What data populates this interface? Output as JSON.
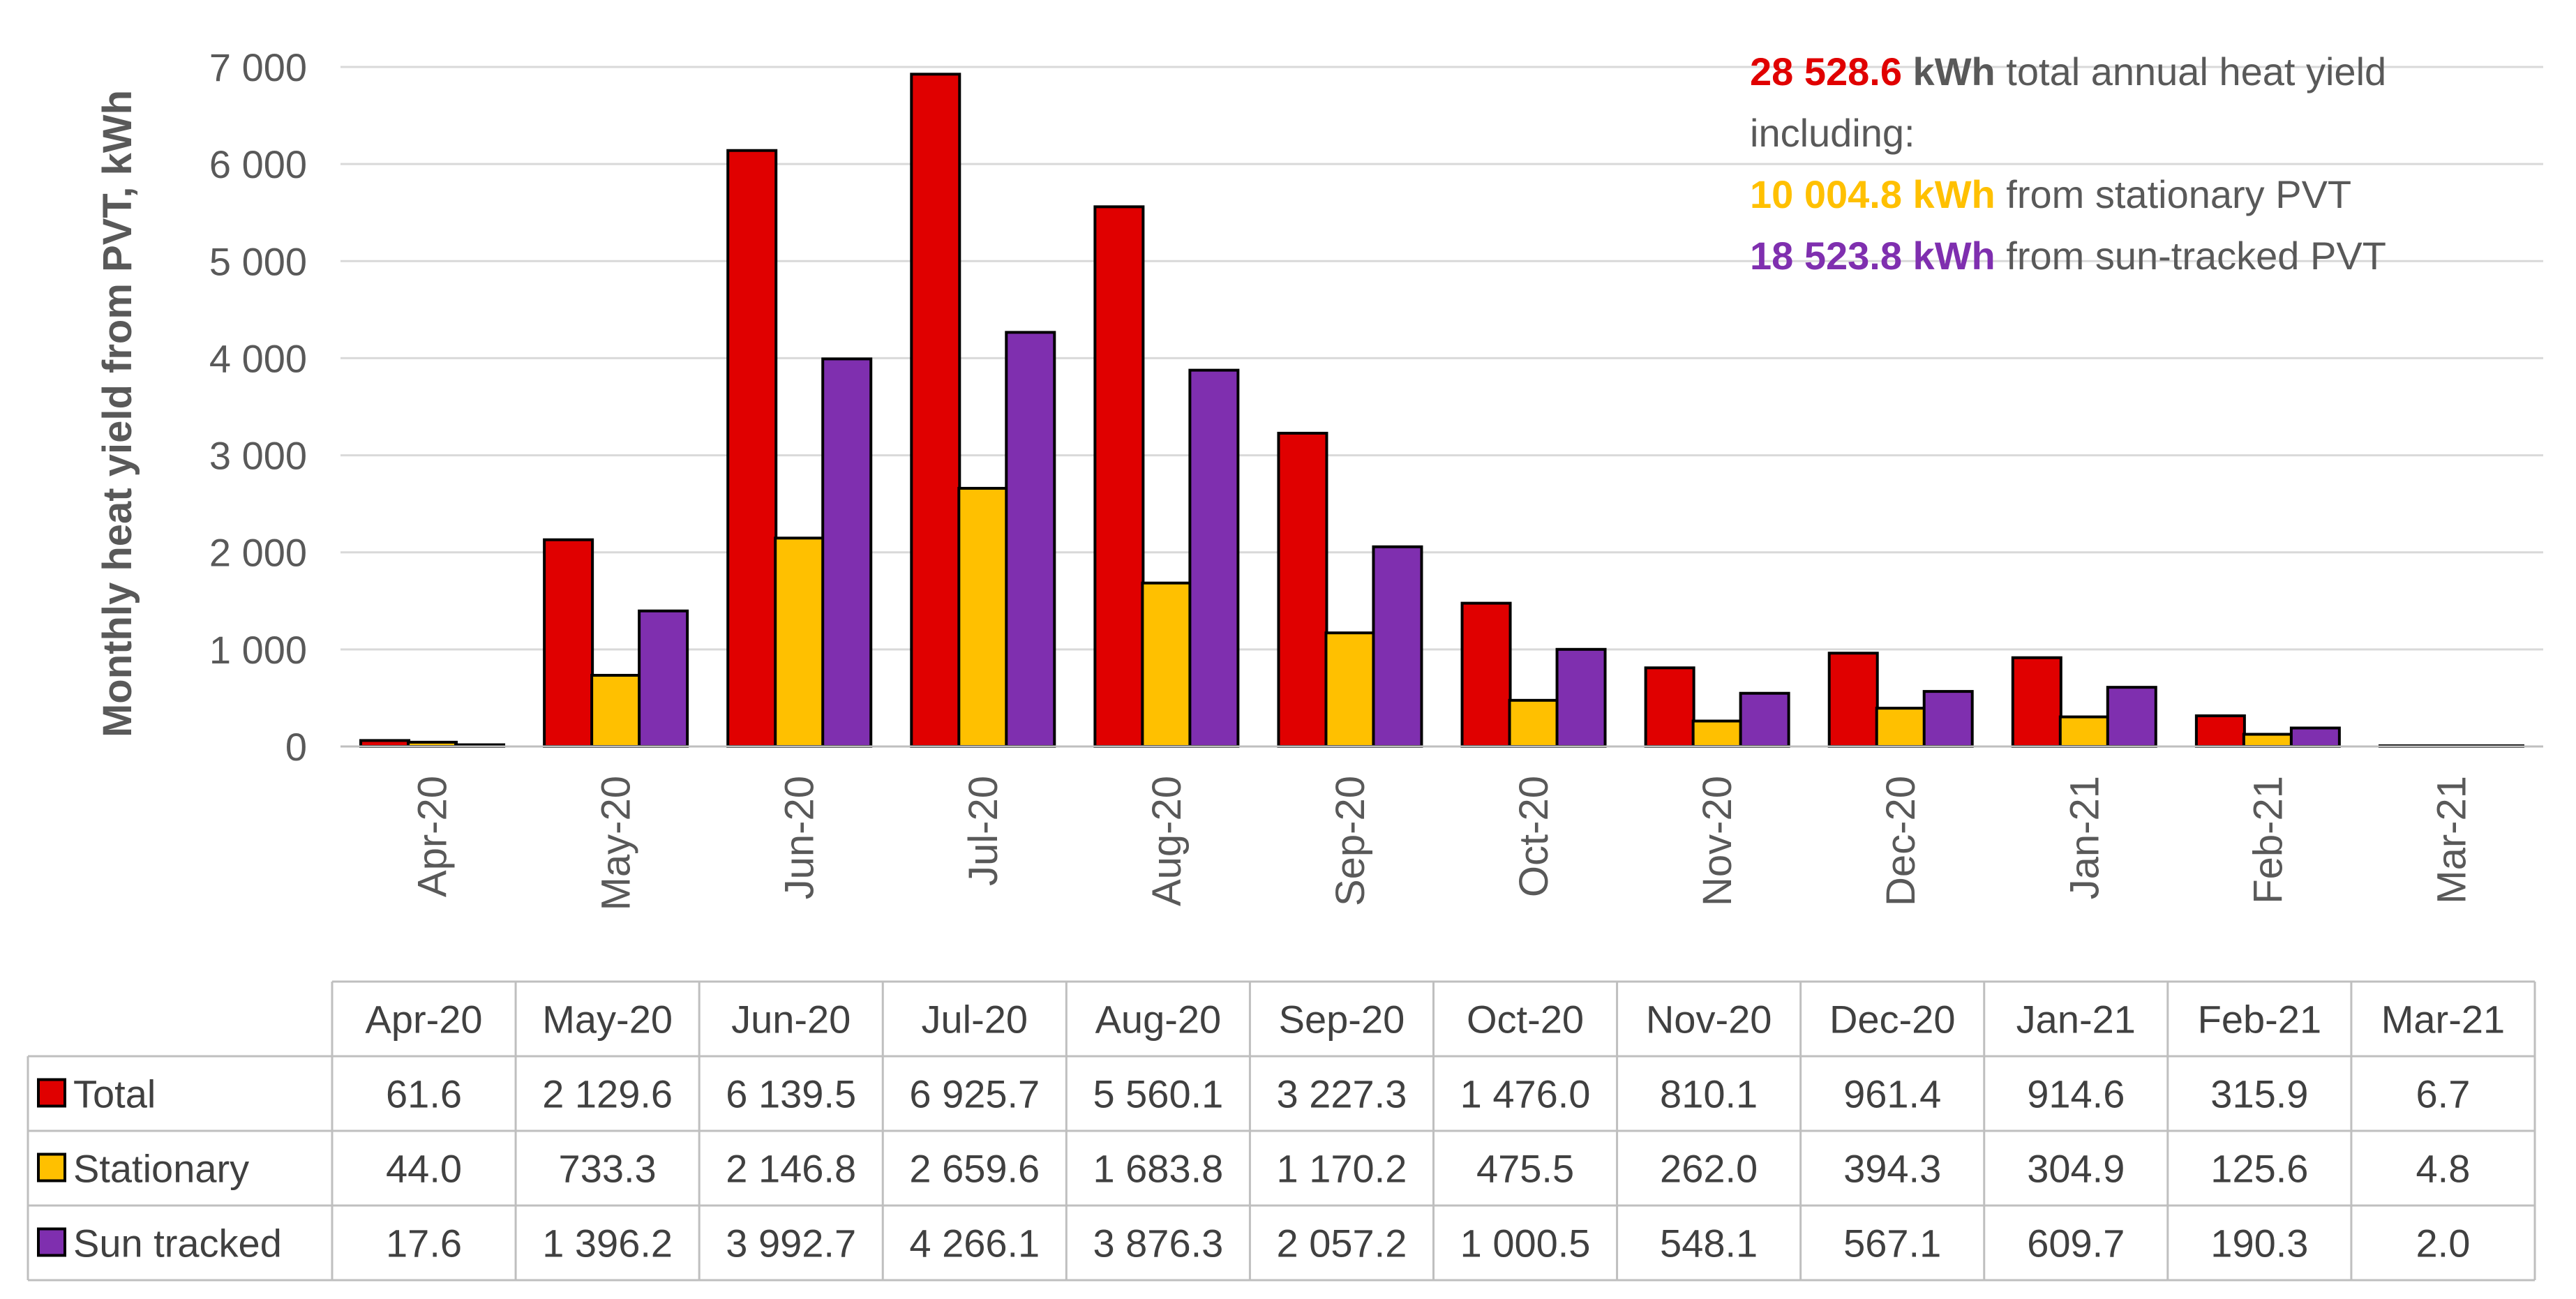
{
  "chart_data": {
    "type": "bar",
    "ylabel": "Monthly heat yield from PVT, kWh",
    "ylim": [
      0,
      7000
    ],
    "yticks": [
      0,
      1000,
      2000,
      3000,
      4000,
      5000,
      6000,
      7000
    ],
    "ytick_labels": [
      "0",
      "1 000",
      "2 000",
      "3 000",
      "4 000",
      "5 000",
      "6 000",
      "7 000"
    ],
    "gridlines": true,
    "legend_placement": "bottom (data table)",
    "categories": [
      "Apr-20",
      "May-20",
      "Jun-20",
      "Jul-20",
      "Aug-20",
      "Sep-20",
      "Oct-20",
      "Nov-20",
      "Dec-20",
      "Jan-21",
      "Feb-21",
      "Mar-21"
    ],
    "series": [
      {
        "name": "Total",
        "color": "#E00000",
        "values": [
          61.6,
          2129.6,
          6139.5,
          6925.7,
          5560.1,
          3227.3,
          1476.0,
          810.1,
          961.4,
          914.6,
          315.9,
          6.7
        ],
        "labels": [
          "61.6",
          "2 129.6",
          "6 139.5",
          "6 925.7",
          "5 560.1",
          "3 227.3",
          "1 476.0",
          "810.1",
          "961.4",
          "914.6",
          "315.9",
          "6.7"
        ]
      },
      {
        "name": "Stationary",
        "color": "#FFC000",
        "values": [
          44.0,
          733.3,
          2146.8,
          2659.6,
          1683.8,
          1170.2,
          475.5,
          262.0,
          394.3,
          304.9,
          125.6,
          4.8
        ],
        "labels": [
          "44.0",
          "733.3",
          "2 146.8",
          "2 659.6",
          "1 683.8",
          "1 170.2",
          "475.5",
          "262.0",
          "394.3",
          "304.9",
          "125.6",
          "4.8"
        ]
      },
      {
        "name": "Sun tracked",
        "color": "#7F2FAF",
        "values": [
          17.6,
          1396.2,
          3992.7,
          4266.1,
          3876.3,
          2057.2,
          1000.5,
          548.1,
          567.1,
          609.7,
          190.3,
          2.0
        ],
        "labels": [
          "17.6",
          "1 396.2",
          "3 992.7",
          "4 266.1",
          "3 876.3",
          "2 057.2",
          "1 000.5",
          "548.1",
          "567.1",
          "609.7",
          "190.3",
          "2.0"
        ]
      }
    ],
    "annotations": [
      {
        "parts": [
          {
            "text": "28 528.6",
            "color": "#E00000",
            "bold": true
          },
          {
            "text": " kWh",
            "color": "#595959",
            "bold": true
          },
          {
            "text": " total annual heat yield",
            "color": "#595959",
            "bold": false
          }
        ]
      },
      {
        "parts": [
          {
            "text": "including:",
            "color": "#595959",
            "bold": false
          }
        ]
      },
      {
        "parts": [
          {
            "text": "10 004.8 kWh",
            "color": "#FFC000",
            "bold": true
          },
          {
            "text": " from stationary PVT",
            "color": "#595959",
            "bold": false
          }
        ]
      },
      {
        "parts": [
          {
            "text": "18 523.8 kWh",
            "color": "#7F2FAF",
            "bold": true
          },
          {
            "text": " from sun-tracked PVT",
            "color": "#595959",
            "bold": false
          }
        ]
      }
    ]
  }
}
